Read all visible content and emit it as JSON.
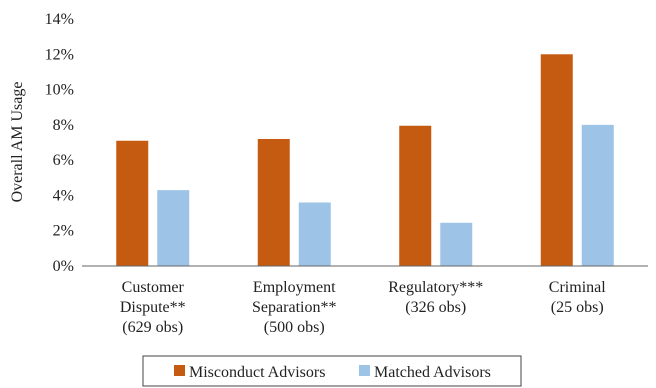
{
  "chart_data": {
    "type": "bar",
    "ylabel": "Overall AM Usage",
    "xlabel": "",
    "ylim": [
      0,
      14
    ],
    "y_ticks": [
      "0%",
      "2%",
      "4%",
      "6%",
      "8%",
      "10%",
      "12%",
      "14%"
    ],
    "y_tick_values": [
      0,
      2,
      4,
      6,
      8,
      10,
      12,
      14
    ],
    "categories": [
      [
        "Customer",
        "Dispute**",
        "(629 obs)"
      ],
      [
        "Employment",
        "Separation**",
        "(500 obs)"
      ],
      [
        "Regulatory***",
        "(326 obs)"
      ],
      [
        "Criminal",
        "(25 obs)"
      ]
    ],
    "series": [
      {
        "name": "Misconduct Advisors",
        "color": "#C55A11",
        "values": [
          7.1,
          7.2,
          7.95,
          12.0
        ]
      },
      {
        "name": "Matched Advisors",
        "color": "#9DC3E6",
        "values": [
          4.3,
          3.6,
          2.45,
          8.0
        ]
      }
    ],
    "grid": false,
    "legend_position": "bottom"
  }
}
